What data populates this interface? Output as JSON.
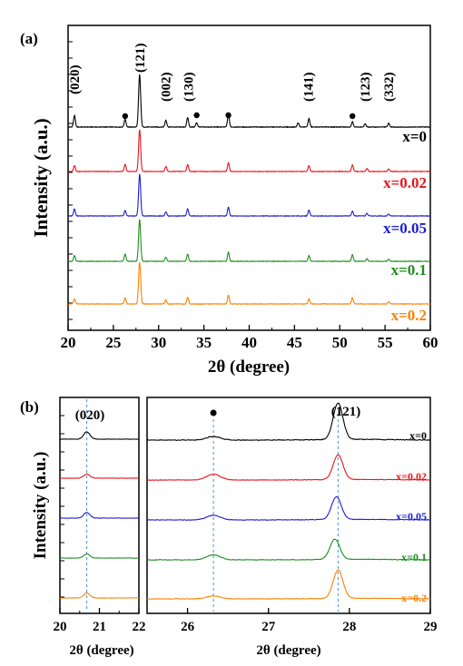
{
  "panels": [
    {
      "id": "a",
      "panel_label": "(a)",
      "chart_data": {
        "type": "line",
        "xlabel": "2θ (degree)",
        "ylabel": "Intensity (a.u.)",
        "xlim": [
          20,
          60
        ],
        "x_ticks": [
          20,
          25,
          30,
          35,
          40,
          45,
          50,
          55,
          60
        ],
        "x_tick_labels": [
          "20",
          "25",
          "30",
          "35",
          "40",
          "45",
          "50",
          "55",
          "60"
        ],
        "peak_labels": [
          {
            "x": 20.7,
            "text": "(020)"
          },
          {
            "x": 27.9,
            "text": "(121)"
          },
          {
            "x": 30.8,
            "text": "(002)"
          },
          {
            "x": 33.3,
            "text": "(130)"
          },
          {
            "x": 46.5,
            "text": "(141)"
          },
          {
            "x": 52.8,
            "text": "(123)"
          },
          {
            "x": 55.4,
            "text": "(332)"
          }
        ],
        "dot_markers_x": [
          26.3,
          34.2,
          37.7,
          51.4
        ],
        "series": [
          {
            "name": "x=0",
            "color": "#000000",
            "peaks": [
              [
                20.7,
                0.22
              ],
              [
                26.3,
                0.15
              ],
              [
                27.9,
                1.0
              ],
              [
                30.8,
                0.13
              ],
              [
                33.2,
                0.18
              ],
              [
                34.2,
                0.08
              ],
              [
                37.7,
                0.25
              ],
              [
                45.4,
                0.08
              ],
              [
                46.6,
                0.16
              ],
              [
                51.4,
                0.1
              ],
              [
                52.8,
                0.06
              ],
              [
                55.4,
                0.07
              ]
            ]
          },
          {
            "name": "x=0.02",
            "color": "#e8141c",
            "peaks": [
              [
                20.7,
                0.14
              ],
              [
                26.3,
                0.17
              ],
              [
                27.9,
                1.0
              ],
              [
                30.8,
                0.12
              ],
              [
                33.2,
                0.17
              ],
              [
                37.7,
                0.21
              ],
              [
                46.6,
                0.14
              ],
              [
                51.4,
                0.16
              ],
              [
                53.0,
                0.07
              ],
              [
                55.4,
                0.06
              ]
            ]
          },
          {
            "name": "x=0.05",
            "color": "#1c1cd6",
            "peaks": [
              [
                20.7,
                0.17
              ],
              [
                26.3,
                0.13
              ],
              [
                27.9,
                1.0
              ],
              [
                30.8,
                0.1
              ],
              [
                33.2,
                0.17
              ],
              [
                37.7,
                0.21
              ],
              [
                46.6,
                0.14
              ],
              [
                51.4,
                0.11
              ],
              [
                53.0,
                0.06
              ],
              [
                55.4,
                0.05
              ]
            ]
          },
          {
            "name": "x=0.1",
            "color": "#1f8c1f",
            "peaks": [
              [
                20.7,
                0.14
              ],
              [
                26.3,
                0.18
              ],
              [
                27.9,
                1.0
              ],
              [
                30.8,
                0.1
              ],
              [
                33.2,
                0.17
              ],
              [
                37.7,
                0.22
              ],
              [
                46.6,
                0.14
              ],
              [
                51.4,
                0.16
              ],
              [
                53.0,
                0.06
              ],
              [
                55.4,
                0.05
              ]
            ]
          },
          {
            "name": "x=0.2",
            "color": "#ff8000",
            "peaks": [
              [
                20.7,
                0.12
              ],
              [
                26.3,
                0.14
              ],
              [
                27.9,
                1.0
              ],
              [
                30.8,
                0.1
              ],
              [
                33.2,
                0.16
              ],
              [
                37.7,
                0.21
              ],
              [
                46.6,
                0.12
              ],
              [
                51.4,
                0.15
              ],
              [
                55.4,
                0.05
              ]
            ]
          }
        ]
      }
    },
    {
      "id": "b1",
      "panel_label": "(b)",
      "chart_data": {
        "type": "line",
        "xlabel": "2θ (degree)",
        "ylabel": "Intensity (a.u.)",
        "xlim": [
          20,
          22
        ],
        "x_ticks": [
          20,
          21,
          22
        ],
        "x_tick_labels": [
          "20",
          "21",
          "22"
        ],
        "peak_label": "(020)",
        "reference_line_x": 20.68,
        "series": [
          {
            "name": "x=0",
            "color": "#000000",
            "peak": [
              20.68,
              0.9
            ]
          },
          {
            "name": "x=0.02",
            "color": "#e8141c",
            "peak": [
              20.68,
              0.5
            ]
          },
          {
            "name": "x=0.05",
            "color": "#1c1cd6",
            "peak": [
              20.68,
              0.7
            ]
          },
          {
            "name": "x=0.1",
            "color": "#1f8c1f",
            "peak": [
              20.68,
              0.5
            ]
          },
          {
            "name": "x=0.2",
            "color": "#ff8000",
            "peak": [
              20.68,
              0.6
            ]
          }
        ]
      }
    },
    {
      "id": "b2",
      "chart_data": {
        "type": "line",
        "xlabel": "2θ (degree)",
        "xlim": [
          25.5,
          29
        ],
        "x_ticks": [
          26,
          27,
          28,
          29
        ],
        "x_tick_labels": [
          "26",
          "27",
          "28",
          "29"
        ],
        "peak_label": "(121)",
        "dot_marker_x": 26.32,
        "reference_lines_x": [
          26.32,
          27.86
        ],
        "series": [
          {
            "name": "x=0",
            "color": "#000000",
            "peaks": [
              [
                26.32,
                0.1
              ],
              [
                27.86,
                1.0
              ]
            ]
          },
          {
            "name": "x=0.02",
            "color": "#e8141c",
            "peaks": [
              [
                26.32,
                0.2
              ],
              [
                27.86,
                0.85
              ]
            ]
          },
          {
            "name": "x=0.05",
            "color": "#1c1cd6",
            "peaks": [
              [
                26.32,
                0.16
              ],
              [
                27.84,
                0.78
              ]
            ]
          },
          {
            "name": "x=0.1",
            "color": "#1f8c1f",
            "peaks": [
              [
                26.32,
                0.17
              ],
              [
                27.82,
                0.7
              ]
            ]
          },
          {
            "name": "x=0.2",
            "color": "#ff8000",
            "peaks": [
              [
                26.32,
                0.1
              ],
              [
                27.86,
                0.98
              ]
            ]
          }
        ]
      }
    }
  ]
}
